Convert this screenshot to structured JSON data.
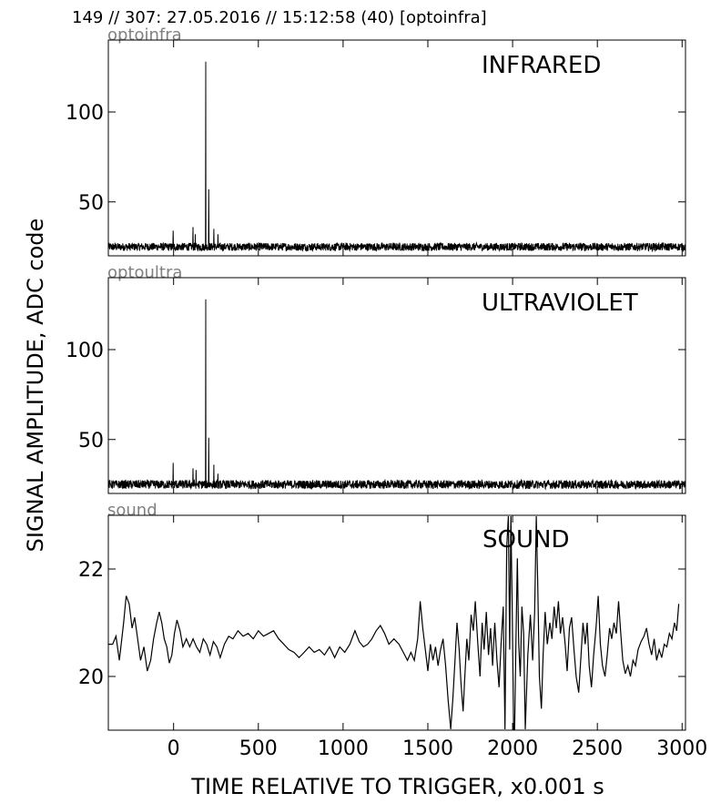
{
  "header": {
    "text": "149 // 307:   27.05.2016 // 15:12:58 (40)  [optoinfra]"
  },
  "xlabel": "TIME RELATIVE TO TRIGGER,   x0.001 s",
  "ylabel": "SIGNAL AMPLITUDE,  ADC code",
  "chart_data": [
    {
      "type": "line",
      "channel": "optoinfra",
      "title": "INFRARED",
      "xlim": [
        -385,
        3020
      ],
      "ylim": [
        20,
        140
      ],
      "yticks": [
        50,
        100
      ],
      "baseline": 25,
      "noise": 2.2,
      "spikes": [
        {
          "x": -3,
          "y": 34
        },
        {
          "x": 115,
          "y": 36
        },
        {
          "x": 128,
          "y": 32
        },
        {
          "x": 190,
          "y": 128
        },
        {
          "x": 208,
          "y": 57
        },
        {
          "x": 238,
          "y": 35
        },
        {
          "x": 262,
          "y": 32
        }
      ]
    },
    {
      "type": "line",
      "channel": "optoultra",
      "title": "ULTRAVIOLET",
      "xlim": [
        -385,
        3020
      ],
      "ylim": [
        20,
        140
      ],
      "yticks": [
        50,
        100
      ],
      "baseline": 25,
      "noise": 2.4,
      "spikes": [
        {
          "x": -3,
          "y": 37
        },
        {
          "x": 115,
          "y": 34
        },
        {
          "x": 132,
          "y": 33
        },
        {
          "x": 190,
          "y": 128
        },
        {
          "x": 208,
          "y": 51
        },
        {
          "x": 238,
          "y": 36
        },
        {
          "x": 262,
          "y": 31
        }
      ]
    },
    {
      "type": "line",
      "channel": "sound",
      "title": "SOUND",
      "xlim": [
        -385,
        3020
      ],
      "ylim": [
        19.0,
        23.0
      ],
      "yticks": [
        20,
        22
      ],
      "xticks": [
        0,
        500,
        1000,
        1500,
        2000,
        2500,
        3000
      ],
      "points": [
        [
          -385,
          20.6
        ],
        [
          -360,
          20.6
        ],
        [
          -340,
          20.75
        ],
        [
          -320,
          20.3
        ],
        [
          -295,
          21.0
        ],
        [
          -280,
          21.5
        ],
        [
          -262,
          21.35
        ],
        [
          -245,
          20.9
        ],
        [
          -230,
          21.1
        ],
        [
          -212,
          20.7
        ],
        [
          -195,
          20.3
        ],
        [
          -175,
          20.55
        ],
        [
          -155,
          20.1
        ],
        [
          -135,
          20.3
        ],
        [
          -118,
          20.7
        ],
        [
          -100,
          21.0
        ],
        [
          -85,
          21.2
        ],
        [
          -70,
          21.0
        ],
        [
          -55,
          20.7
        ],
        [
          -40,
          20.55
        ],
        [
          -25,
          20.25
        ],
        [
          -10,
          20.4
        ],
        [
          5,
          20.8
        ],
        [
          20,
          21.05
        ],
        [
          38,
          20.85
        ],
        [
          55,
          20.55
        ],
        [
          75,
          20.7
        ],
        [
          95,
          20.55
        ],
        [
          115,
          20.7
        ],
        [
          135,
          20.55
        ],
        [
          155,
          20.45
        ],
        [
          175,
          20.7
        ],
        [
          195,
          20.6
        ],
        [
          215,
          20.4
        ],
        [
          235,
          20.65
        ],
        [
          255,
          20.55
        ],
        [
          275,
          20.35
        ],
        [
          300,
          20.6
        ],
        [
          325,
          20.75
        ],
        [
          350,
          20.7
        ],
        [
          380,
          20.85
        ],
        [
          410,
          20.75
        ],
        [
          440,
          20.8
        ],
        [
          470,
          20.7
        ],
        [
          500,
          20.85
        ],
        [
          530,
          20.75
        ],
        [
          560,
          20.8
        ],
        [
          590,
          20.85
        ],
        [
          620,
          20.7
        ],
        [
          650,
          20.6
        ],
        [
          680,
          20.5
        ],
        [
          710,
          20.45
        ],
        [
          740,
          20.35
        ],
        [
          770,
          20.45
        ],
        [
          800,
          20.55
        ],
        [
          830,
          20.45
        ],
        [
          860,
          20.5
        ],
        [
          890,
          20.4
        ],
        [
          920,
          20.55
        ],
        [
          950,
          20.35
        ],
        [
          980,
          20.55
        ],
        [
          1010,
          20.45
        ],
        [
          1040,
          20.6
        ],
        [
          1070,
          20.85
        ],
        [
          1095,
          20.65
        ],
        [
          1120,
          20.55
        ],
        [
          1145,
          20.6
        ],
        [
          1170,
          20.7
        ],
        [
          1195,
          20.85
        ],
        [
          1220,
          20.95
        ],
        [
          1245,
          20.8
        ],
        [
          1270,
          20.6
        ],
        [
          1300,
          20.7
        ],
        [
          1330,
          20.6
        ],
        [
          1355,
          20.45
        ],
        [
          1380,
          20.3
        ],
        [
          1400,
          20.45
        ],
        [
          1420,
          20.3
        ],
        [
          1440,
          20.7
        ],
        [
          1455,
          21.4
        ],
        [
          1470,
          20.9
        ],
        [
          1485,
          20.5
        ],
        [
          1500,
          20.1
        ],
        [
          1515,
          20.6
        ],
        [
          1530,
          20.3
        ],
        [
          1545,
          20.55
        ],
        [
          1560,
          20.2
        ],
        [
          1575,
          20.5
        ],
        [
          1590,
          20.7
        ],
        [
          1605,
          20.2
        ],
        [
          1620,
          19.55
        ],
        [
          1635,
          19.0
        ],
        [
          1648,
          19.6
        ],
        [
          1660,
          20.3
        ],
        [
          1672,
          21.0
        ],
        [
          1685,
          20.5
        ],
        [
          1695,
          19.9
        ],
        [
          1708,
          19.35
        ],
        [
          1718,
          20.0
        ],
        [
          1730,
          20.7
        ],
        [
          1742,
          20.3
        ],
        [
          1755,
          21.15
        ],
        [
          1768,
          20.85
        ],
        [
          1780,
          21.4
        ],
        [
          1795,
          20.6
        ],
        [
          1808,
          20.0
        ],
        [
          1820,
          21.0
        ],
        [
          1832,
          20.5
        ],
        [
          1845,
          21.2
        ],
        [
          1858,
          20.4
        ],
        [
          1870,
          20.9
        ],
        [
          1882,
          20.2
        ],
        [
          1895,
          21.0
        ],
        [
          1908,
          20.3
        ],
        [
          1920,
          19.8
        ],
        [
          1932,
          20.6
        ],
        [
          1945,
          21.3
        ],
        [
          1955,
          19.0
        ],
        [
          1965,
          22.4
        ],
        [
          1975,
          23.0
        ],
        [
          1983,
          20.5
        ],
        [
          1990,
          23.0
        ],
        [
          1998,
          21.2
        ],
        [
          2006,
          19.0
        ],
        [
          2012,
          19.0
        ],
        [
          2020,
          20.7
        ],
        [
          2028,
          22.2
        ],
        [
          2036,
          20.6
        ],
        [
          2045,
          20.0
        ],
        [
          2055,
          21.3
        ],
        [
          2065,
          20.8
        ],
        [
          2075,
          19.0
        ],
        [
          2090,
          20.4
        ],
        [
          2105,
          21.15
        ],
        [
          2118,
          20.3
        ],
        [
          2130,
          21.2
        ],
        [
          2140,
          23.0
        ],
        [
          2148,
          21.8
        ],
        [
          2158,
          20.0
        ],
        [
          2170,
          19.4
        ],
        [
          2180,
          20.4
        ],
        [
          2192,
          21.2
        ],
        [
          2205,
          20.6
        ],
        [
          2220,
          21.0
        ],
        [
          2232,
          20.7
        ],
        [
          2245,
          21.3
        ],
        [
          2258,
          20.9
        ],
        [
          2270,
          21.4
        ],
        [
          2282,
          20.8
        ],
        [
          2295,
          21.1
        ],
        [
          2310,
          20.6
        ],
        [
          2322,
          20.1
        ],
        [
          2335,
          20.9
        ],
        [
          2348,
          21.1
        ],
        [
          2362,
          20.5
        ],
        [
          2375,
          20.0
        ],
        [
          2390,
          19.7
        ],
        [
          2402,
          20.3
        ],
        [
          2415,
          21.0
        ],
        [
          2428,
          20.6
        ],
        [
          2440,
          21.0
        ],
        [
          2452,
          20.2
        ],
        [
          2465,
          19.8
        ],
        [
          2478,
          20.4
        ],
        [
          2492,
          20.9
        ],
        [
          2505,
          21.5
        ],
        [
          2518,
          20.6
        ],
        [
          2530,
          20.2
        ],
        [
          2545,
          20.0
        ],
        [
          2558,
          20.4
        ],
        [
          2572,
          20.9
        ],
        [
          2585,
          20.7
        ],
        [
          2598,
          21.0
        ],
        [
          2612,
          20.8
        ],
        [
          2625,
          21.4
        ],
        [
          2638,
          20.8
        ],
        [
          2650,
          20.3
        ],
        [
          2665,
          20.05
        ],
        [
          2680,
          20.2
        ],
        [
          2695,
          20.0
        ],
        [
          2710,
          20.3
        ],
        [
          2725,
          20.2
        ],
        [
          2740,
          20.5
        ],
        [
          2758,
          20.65
        ],
        [
          2775,
          20.75
        ],
        [
          2790,
          20.9
        ],
        [
          2805,
          20.6
        ],
        [
          2820,
          20.4
        ],
        [
          2835,
          20.7
        ],
        [
          2850,
          20.3
        ],
        [
          2865,
          20.5
        ],
        [
          2880,
          20.35
        ],
        [
          2895,
          20.6
        ],
        [
          2910,
          20.55
        ],
        [
          2925,
          20.8
        ],
        [
          2940,
          20.7
        ],
        [
          2955,
          21.0
        ],
        [
          2968,
          20.85
        ],
        [
          2980,
          21.35
        ]
      ]
    }
  ]
}
